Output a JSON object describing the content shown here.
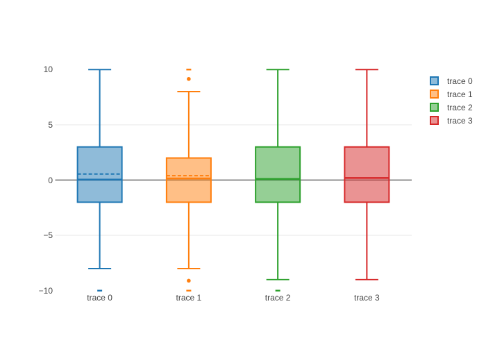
{
  "chart_data": {
    "type": "box",
    "title": "",
    "xlabel": "",
    "ylabel": "",
    "ylim": [
      -10.6,
      10.6
    ],
    "grid": true,
    "legend_position": "top-right",
    "yaxis": {
      "ticks": [
        "10",
        "5",
        "0",
        "−5",
        "−10"
      ],
      "tick_values": [
        10,
        5,
        0,
        -5,
        -10
      ],
      "grid_values": [
        5,
        -5
      ],
      "zeroline_value": 0
    },
    "categories": [
      "trace 0",
      "trace 1",
      "trace 2",
      "trace 3"
    ],
    "series": [
      {
        "name": "trace 0",
        "color": "#1f77b4",
        "lower_whisker": -8,
        "q1": -2,
        "median": 0.05,
        "q3": 3,
        "upper_whisker": 10,
        "mean": 0.55,
        "show_mean": true,
        "outliers": [
          {
            "value": -10,
            "marker": "dash"
          }
        ]
      },
      {
        "name": "trace 1",
        "color": "#ff7f0e",
        "lower_whisker": -8,
        "q1": -2,
        "median": 0.15,
        "q3": 2,
        "upper_whisker": 8,
        "mean": 0.4,
        "show_mean": true,
        "outliers": [
          {
            "value": 10,
            "marker": "dash"
          },
          {
            "value": 9.15,
            "marker": "dot"
          },
          {
            "value": -9.1,
            "marker": "dot"
          },
          {
            "value": -10,
            "marker": "dash"
          }
        ]
      },
      {
        "name": "trace 2",
        "color": "#2ca02c",
        "lower_whisker": -9,
        "q1": -2,
        "median": 0.1,
        "q3": 3,
        "upper_whisker": 10,
        "mean": null,
        "show_mean": false,
        "outliers": [
          {
            "value": -10,
            "marker": "dash"
          }
        ]
      },
      {
        "name": "trace 3",
        "color": "#d62728",
        "lower_whisker": -9,
        "q1": -2,
        "median": 0.2,
        "q3": 3,
        "upper_whisker": 10,
        "mean": null,
        "show_mean": false,
        "outliers": []
      }
    ],
    "colors": {
      "zeroline": "#919191",
      "gridline": "#f0f0f0",
      "tick_text": "#444444",
      "background": "#ffffff"
    }
  }
}
